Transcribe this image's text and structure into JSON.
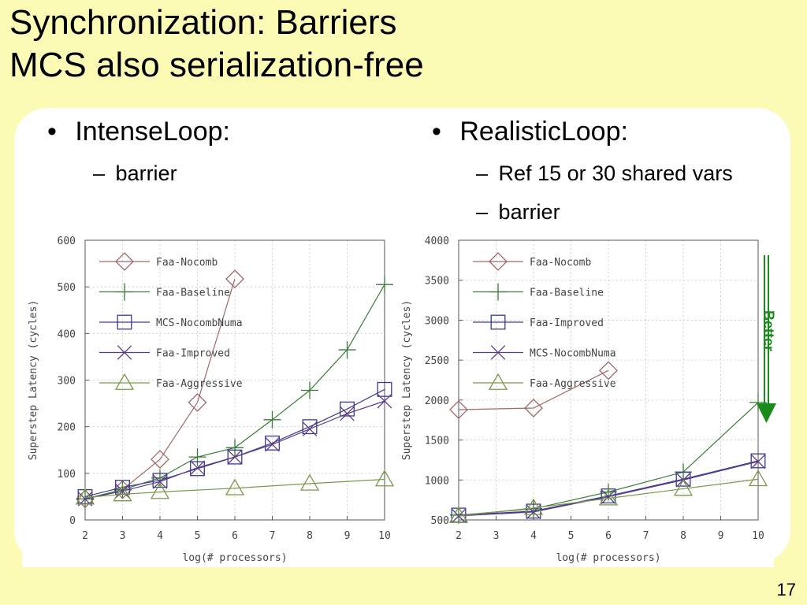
{
  "slide": {
    "title_line1": "Synchronization: Barriers",
    "title_line2": "MCS also serialization-free",
    "left": {
      "bullet": "IntenseLoop:",
      "subs": [
        "barrier"
      ]
    },
    "right": {
      "bullet": "RealisticLoop:",
      "subs": [
        "Ref 15 or 30 shared vars",
        "barrier"
      ]
    },
    "better_label": "Better",
    "better_color": "#1a8a1a",
    "slide_number": "17"
  },
  "chart_data": [
    {
      "type": "line",
      "title": "",
      "xlabel": "log(# processors)",
      "ylabel": "Superstep Latency (cycles)",
      "xlim": [
        2,
        10
      ],
      "ylim": [
        0,
        600
      ],
      "xticks": [
        "2",
        "3",
        "4",
        "5",
        "6",
        "7",
        "8",
        "9",
        "10"
      ],
      "yticks": [
        "0",
        "100",
        "200",
        "300",
        "400",
        "500",
        "600"
      ],
      "legend_position": "top-left",
      "grid": true,
      "series": [
        {
          "name": "Faa-Nocomb",
          "marker": "diamond",
          "color": "#a06868",
          "x": [
            2,
            3,
            4,
            5,
            6
          ],
          "y": [
            45,
            65,
            130,
            252,
            517
          ]
        },
        {
          "name": "Faa-Baseline",
          "marker": "plus",
          "color": "#3a7a3a",
          "x": [
            2,
            3,
            4,
            5,
            6,
            7,
            8,
            9,
            10
          ],
          "y": [
            45,
            65,
            90,
            135,
            155,
            215,
            278,
            365,
            505
          ]
        },
        {
          "name": "MCS-NocombNuma",
          "marker": "square",
          "color": "#3a3a8a",
          "x": [
            2,
            3,
            4,
            5,
            6,
            7,
            8,
            9,
            10
          ],
          "y": [
            50,
            70,
            85,
            110,
            135,
            165,
            200,
            238,
            280
          ]
        },
        {
          "name": "Faa-Improved",
          "marker": "x",
          "color": "#5a3a8a",
          "x": [
            2,
            3,
            4,
            5,
            6,
            7,
            8,
            9,
            10
          ],
          "y": [
            45,
            62,
            82,
            112,
            135,
            162,
            195,
            228,
            255
          ]
        },
        {
          "name": "Faa-Aggressive",
          "marker": "triangle",
          "color": "#7a9a4a",
          "x": [
            2,
            3,
            4,
            6,
            8,
            10
          ],
          "y": [
            48,
            55,
            60,
            68,
            78,
            87
          ]
        }
      ]
    },
    {
      "type": "line",
      "title": "",
      "xlabel": "log(# processors)",
      "ylabel": "Superstep Latency (cycles)",
      "xlim": [
        2,
        10
      ],
      "ylim": [
        500,
        4000
      ],
      "xticks": [
        "2",
        "3",
        "4",
        "5",
        "6",
        "7",
        "8",
        "9",
        "10"
      ],
      "yticks": [
        "500",
        "1000",
        "1500",
        "2000",
        "2500",
        "3000",
        "3500",
        "4000"
      ],
      "legend_position": "top-left",
      "grid": true,
      "series": [
        {
          "name": "Faa-Nocomb",
          "marker": "diamond",
          "color": "#a06868",
          "x": [
            2,
            4,
            6
          ],
          "y": [
            1880,
            1900,
            2370
          ]
        },
        {
          "name": "Faa-Baseline",
          "marker": "plus",
          "color": "#3a7a3a",
          "x": [
            2,
            4,
            6,
            8,
            10
          ],
          "y": [
            560,
            640,
            850,
            1100,
            1970
          ]
        },
        {
          "name": "Faa-Improved",
          "marker": "square",
          "color": "#3a3a8a",
          "x": [
            2,
            4,
            6,
            8,
            10
          ],
          "y": [
            560,
            610,
            800,
            1010,
            1240
          ]
        },
        {
          "name": "MCS-NocombNuma",
          "marker": "x",
          "color": "#5a3a8a",
          "x": [
            2,
            4,
            6,
            8,
            10
          ],
          "y": [
            550,
            600,
            790,
            1000,
            1230
          ]
        },
        {
          "name": "Faa-Aggressive",
          "marker": "triangle",
          "color": "#7a9a4a",
          "x": [
            2,
            4,
            6,
            8,
            10
          ],
          "y": [
            550,
            650,
            770,
            890,
            1010
          ]
        }
      ]
    }
  ]
}
